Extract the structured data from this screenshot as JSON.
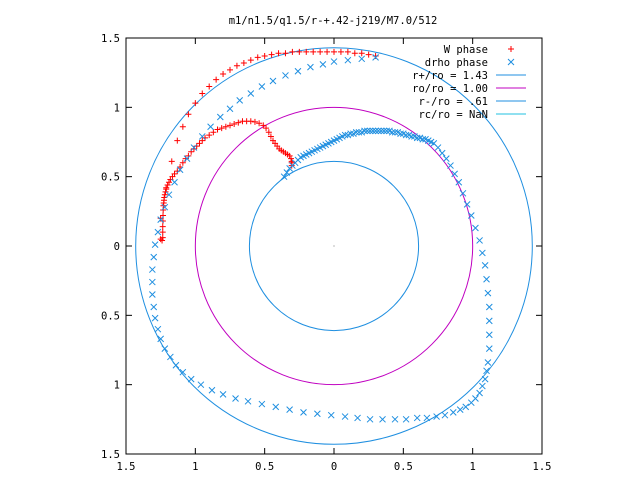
{
  "chart_data": {
    "type": "scatter",
    "title": "m1/n1.5/q1.5/r-+.42-j219/M7.0/512",
    "xlabel": "",
    "ylabel": "",
    "xlim": [
      -1.5,
      1.5
    ],
    "ylim": [
      -1.5,
      1.5
    ],
    "x_tick_values": [
      -1.5,
      -1,
      -0.5,
      0,
      0.5,
      1,
      1.5
    ],
    "x_tick_labels": [
      "1.5",
      "1",
      "0.5",
      "0",
      "0.5",
      "1",
      "1.5"
    ],
    "y_tick_values": [
      1.5,
      1,
      0.5,
      0,
      -0.5,
      -1,
      -1.5
    ],
    "y_tick_labels": [
      "1.5",
      "1",
      "0.5",
      "0",
      "0.5",
      "1",
      "1.5"
    ],
    "grid": false,
    "legend_position": "top-right",
    "series": [
      {
        "name": "W phase",
        "kind": "points",
        "marker": "plus",
        "color": "#ff0000",
        "x": [
          -1.25,
          -1.24,
          -1.235,
          -1.235,
          -1.235,
          -1.234,
          -1.233,
          -1.232,
          -1.23,
          -1.228,
          -1.226,
          -1.224,
          -1.22,
          -1.215,
          -1.21,
          -1.2,
          -1.19,
          -1.18,
          -1.165,
          -1.15,
          -1.13,
          -1.11,
          -1.09,
          -1.07,
          -1.05,
          -1.03,
          -1.01,
          -0.99,
          -0.97,
          -0.95,
          -0.93,
          -0.9,
          -0.87,
          -0.84,
          -0.81,
          -0.78,
          -0.75,
          -0.72,
          -0.69,
          -0.66,
          -0.63,
          -0.6,
          -0.57,
          -0.54,
          -0.51,
          -0.49,
          -0.47,
          -0.455,
          -0.44,
          -0.425,
          -0.41,
          -0.395,
          -0.38,
          -0.365,
          -0.35,
          -0.335,
          -0.32,
          -0.31,
          -0.305,
          -0.305,
          -0.305,
          -1.25,
          -1.21,
          -1.17,
          -1.13,
          -1.09,
          -1.05,
          -1.0,
          -0.95,
          -0.9,
          -0.85,
          -0.8,
          -0.75,
          -0.7,
          -0.65,
          -0.6,
          -0.55,
          -0.5,
          -0.45,
          -0.4,
          -0.35,
          -0.3,
          -0.25,
          -0.2,
          -0.15,
          -0.1,
          -0.05,
          0.0,
          0.05,
          0.1,
          0.15,
          0.2,
          0.25,
          0.3
        ],
        "y": [
          0.05,
          0.04,
          0.06,
          0.1,
          0.14,
          0.18,
          0.22,
          0.26,
          0.29,
          0.31,
          0.33,
          0.35,
          0.37,
          0.39,
          0.41,
          0.44,
          0.46,
          0.48,
          0.5,
          0.52,
          0.54,
          0.57,
          0.6,
          0.63,
          0.65,
          0.68,
          0.7,
          0.72,
          0.74,
          0.76,
          0.78,
          0.8,
          0.82,
          0.84,
          0.85,
          0.86,
          0.87,
          0.88,
          0.89,
          0.9,
          0.9,
          0.9,
          0.895,
          0.885,
          0.87,
          0.85,
          0.82,
          0.79,
          0.76,
          0.74,
          0.72,
          0.7,
          0.69,
          0.68,
          0.67,
          0.66,
          0.65,
          0.63,
          0.61,
          0.6,
          0.58,
          0.2,
          0.42,
          0.61,
          0.76,
          0.86,
          0.95,
          1.03,
          1.1,
          1.15,
          1.2,
          1.24,
          1.27,
          1.3,
          1.32,
          1.34,
          1.36,
          1.37,
          1.38,
          1.39,
          1.39,
          1.4,
          1.4,
          1.4,
          1.4,
          1.4,
          1.4,
          1.4,
          1.4,
          1.4,
          1.39,
          1.39,
          1.38,
          1.37
        ]
      },
      {
        "name": "drho phase",
        "kind": "points",
        "marker": "cross",
        "color": "#1f8fe0",
        "x": [
          -0.36,
          -0.34,
          -0.32,
          -0.3,
          -0.28,
          -0.26,
          -0.24,
          -0.22,
          -0.2,
          -0.18,
          -0.16,
          -0.14,
          -0.12,
          -0.1,
          -0.08,
          -0.06,
          -0.04,
          -0.02,
          0.0,
          0.02,
          0.04,
          0.06,
          0.08,
          0.1,
          0.12,
          0.14,
          0.16,
          0.18,
          0.2,
          0.22,
          0.24,
          0.26,
          0.28,
          0.3,
          0.32,
          0.34,
          0.36,
          0.38,
          0.4,
          0.42,
          0.44,
          0.46,
          0.48,
          0.5,
          0.52,
          0.54,
          0.56,
          0.58,
          0.6,
          0.62,
          0.64,
          0.66,
          0.68,
          0.7,
          0.72,
          0.75,
          0.78,
          0.81,
          0.84,
          0.87,
          0.9,
          0.93,
          0.96,
          0.99,
          1.02,
          1.05,
          1.07,
          1.09,
          1.1,
          1.11,
          1.12,
          1.12,
          1.12,
          1.12,
          1.11,
          1.1,
          1.09,
          1.07,
          1.05,
          1.02,
          0.99,
          0.95,
          0.91,
          0.86,
          0.8,
          0.74,
          0.67,
          0.6,
          0.52,
          0.44,
          0.35,
          0.26,
          0.17,
          0.08,
          -0.02,
          -0.12,
          -0.22,
          -0.32,
          -0.42,
          -0.52,
          -0.62,
          -0.71,
          -0.8,
          -0.88,
          -0.96,
          -1.03,
          -1.09,
          -1.14,
          -1.18,
          -1.22,
          -1.25,
          -1.27,
          -1.29,
          -1.3,
          -1.31,
          -1.31,
          -1.31,
          -1.3,
          -1.29,
          -1.27,
          -1.25,
          -1.22,
          -1.19,
          -1.15,
          -1.11,
          -1.06,
          -1.01,
          -0.95,
          -0.89,
          -0.82,
          -0.75,
          -0.68,
          -0.6,
          -0.52,
          -0.44,
          -0.35,
          -0.26,
          -0.17,
          -0.08,
          0.0,
          0.1,
          0.2,
          0.3
        ],
        "y": [
          0.5,
          0.53,
          0.56,
          0.58,
          0.6,
          0.62,
          0.64,
          0.65,
          0.66,
          0.67,
          0.68,
          0.69,
          0.7,
          0.71,
          0.72,
          0.73,
          0.74,
          0.75,
          0.76,
          0.77,
          0.78,
          0.79,
          0.8,
          0.8,
          0.81,
          0.81,
          0.82,
          0.82,
          0.82,
          0.83,
          0.83,
          0.83,
          0.83,
          0.83,
          0.83,
          0.83,
          0.83,
          0.83,
          0.83,
          0.82,
          0.82,
          0.82,
          0.81,
          0.81,
          0.8,
          0.8,
          0.79,
          0.79,
          0.78,
          0.78,
          0.77,
          0.77,
          0.76,
          0.75,
          0.74,
          0.71,
          0.67,
          0.63,
          0.58,
          0.52,
          0.46,
          0.38,
          0.3,
          0.22,
          0.13,
          0.04,
          -0.05,
          -0.14,
          -0.24,
          -0.34,
          -0.44,
          -0.54,
          -0.64,
          -0.74,
          -0.84,
          -0.9,
          -0.96,
          -1.01,
          -1.06,
          -1.1,
          -1.13,
          -1.16,
          -1.18,
          -1.2,
          -1.22,
          -1.23,
          -1.24,
          -1.24,
          -1.25,
          -1.25,
          -1.25,
          -1.25,
          -1.24,
          -1.23,
          -1.22,
          -1.21,
          -1.2,
          -1.18,
          -1.16,
          -1.14,
          -1.12,
          -1.1,
          -1.07,
          -1.04,
          -1.0,
          -0.96,
          -0.91,
          -0.86,
          -0.8,
          -0.74,
          -0.67,
          -0.6,
          -0.52,
          -0.44,
          -0.35,
          -0.26,
          -0.17,
          -0.08,
          0.01,
          0.1,
          0.19,
          0.28,
          0.37,
          0.46,
          0.55,
          0.63,
          0.71,
          0.79,
          0.86,
          0.93,
          0.99,
          1.05,
          1.1,
          1.15,
          1.19,
          1.23,
          1.26,
          1.29,
          1.31,
          1.33,
          1.34,
          1.35,
          1.36
        ]
      },
      {
        "name": "r+/ro = 1.43",
        "kind": "circle",
        "radius": 1.43,
        "color": "#1f8fe0"
      },
      {
        "name": "ro/ro = 1.00",
        "kind": "circle",
        "radius": 1.0,
        "color": "#c000c0"
      },
      {
        "name": "r-/ro = .61",
        "kind": "circle",
        "radius": 0.61,
        "color": "#1f8fe0"
      },
      {
        "name": "rc/ro = NaN",
        "kind": "circle",
        "radius": null,
        "color": "#20c0e0"
      }
    ]
  }
}
